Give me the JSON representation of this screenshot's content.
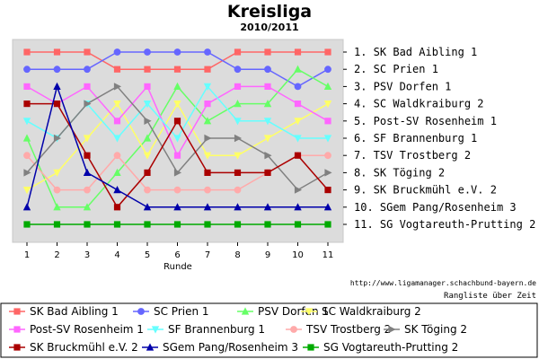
{
  "chart_data": {
    "type": "line",
    "title": "Kreisliga",
    "subtitle": "2010/2011",
    "xlabel": "Runde",
    "ylabel": "",
    "x": [
      1,
      2,
      3,
      4,
      5,
      6,
      7,
      8,
      9,
      10,
      11
    ],
    "ylim": [
      11.5,
      0.5
    ],
    "y_inverted": true,
    "grid": false,
    "legend_position": "bottom",
    "source_text": "http://www.ligamanager.schachbund-bayern.de",
    "note_text": "Rangliste über Zeit",
    "rank_labels": [
      "1. SK Bad Aibling 1",
      "2. SC Prien 1",
      "3. PSV Dorfen 1",
      "4. SC Waldkraiburg 2",
      "5. Post-SV Rosenheim 1",
      "6. SF Brannenburg 1",
      "7. TSV Trostberg 2",
      "8. SK Töging 2",
      "9. SK Bruckmühl e.V. 2",
      "10. SGem Pang/Rosenheim 3",
      "11. SG Vogtareuth-Prutting 2"
    ],
    "series": [
      {
        "name": "SK Bad Aibling 1",
        "color": "#ff6666",
        "marker": "square",
        "values": [
          1,
          1,
          1,
          2,
          2,
          2,
          2,
          1,
          1,
          1,
          1
        ]
      },
      {
        "name": "SC Prien 1",
        "color": "#6666ff",
        "marker": "circle",
        "values": [
          2,
          2,
          2,
          1,
          1,
          1,
          1,
          2,
          2,
          3,
          2
        ]
      },
      {
        "name": "PSV Dorfen 1",
        "color": "#66ff66",
        "marker": "triangle-up",
        "values": [
          6,
          10,
          10,
          8,
          6,
          3,
          5,
          4,
          4,
          2,
          3
        ]
      },
      {
        "name": "SC Waldkraiburg 2",
        "color": "#ffff66",
        "marker": "triangle-down",
        "values": [
          9,
          8,
          6,
          4,
          7,
          4,
          7,
          7,
          6,
          5,
          4
        ]
      },
      {
        "name": "Post-SV Rosenheim 1",
        "color": "#ff66ff",
        "marker": "square",
        "values": [
          3,
          4,
          3,
          5,
          3,
          7,
          4,
          3,
          3,
          4,
          5
        ]
      },
      {
        "name": "SF Brannenburg 1",
        "color": "#66ffff",
        "marker": "triangle-down",
        "values": [
          5,
          6,
          4,
          6,
          4,
          6,
          3,
          5,
          5,
          6,
          6
        ]
      },
      {
        "name": "TSV Trostberg 2",
        "color": "#ffaaaa",
        "marker": "circle",
        "values": [
          7,
          9,
          9,
          7,
          9,
          9,
          9,
          9,
          8,
          7,
          7
        ]
      },
      {
        "name": "SK Töging 2",
        "color": "#808080",
        "marker": "triangle-right",
        "values": [
          8,
          6,
          4,
          3,
          5,
          8,
          6,
          6,
          7,
          9,
          8
        ]
      },
      {
        "name": "SK Bruckmühl e.V. 2",
        "color": "#aa0000",
        "marker": "square",
        "values": [
          4,
          4,
          7,
          10,
          8,
          5,
          8,
          8,
          8,
          7,
          9
        ]
      },
      {
        "name": "SGem Pang/Rosenheim 3",
        "color": "#0000aa",
        "marker": "triangle-up",
        "values": [
          10,
          3,
          8,
          9,
          10,
          10,
          10,
          10,
          10,
          10,
          10
        ]
      },
      {
        "name": "SG Vogtareuth-Prutting 2",
        "color": "#00aa00",
        "marker": "square",
        "values": [
          11,
          11,
          11,
          11,
          11,
          11,
          11,
          11,
          11,
          11,
          11
        ]
      }
    ]
  }
}
